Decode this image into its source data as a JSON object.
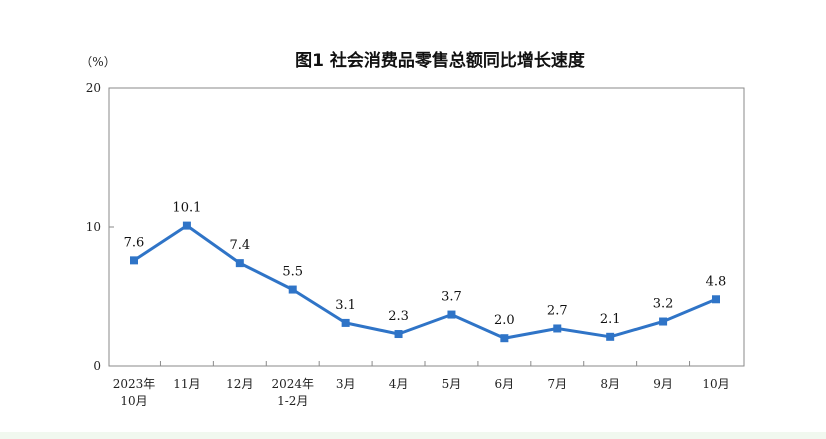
{
  "chart_data": {
    "type": "line",
    "title": "图1  社会消费品零售总额同比增长速度",
    "unit_label": "（%）",
    "xlabel": "",
    "ylabel": "",
    "ylim": [
      0,
      20
    ],
    "yticks": [
      "0",
      "10",
      "20"
    ],
    "grid": false,
    "categories": [
      [
        "2023年",
        "10月"
      ],
      [
        "11月"
      ],
      [
        "12月"
      ],
      [
        "2024年",
        "1-2月"
      ],
      [
        "3月"
      ],
      [
        "4月"
      ],
      [
        "5月"
      ],
      [
        "6月"
      ],
      [
        "7月"
      ],
      [
        "8月"
      ],
      [
        "9月"
      ],
      [
        "10月"
      ]
    ],
    "values": [
      7.6,
      10.1,
      7.4,
      5.5,
      3.1,
      2.3,
      3.7,
      2.0,
      2.7,
      2.1,
      3.2,
      4.8
    ],
    "value_labels": [
      "7.6",
      "10.1",
      "7.4",
      "5.5",
      "3.1",
      "2.3",
      "3.7",
      "2.0",
      "2.7",
      "2.1",
      "3.2",
      "4.8"
    ],
    "line_color": "#2f74c7"
  }
}
